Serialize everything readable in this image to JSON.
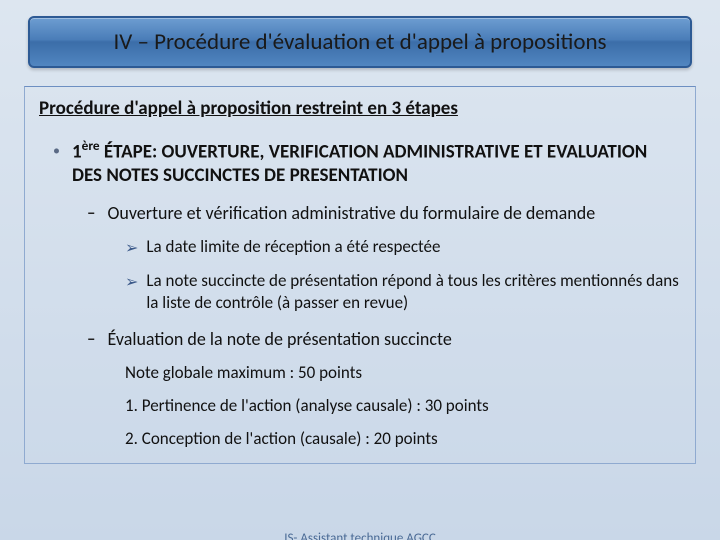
{
  "title": "IV – Procédure d'évaluation et d'appel à propositions",
  "subtitle": "Procédure d'appel à proposition restreint en 3 étapes",
  "stage": {
    "ordinal_html": "1<sup>ère</sup>",
    "label": "1ère ÉTAPE: OUVERTURE, VERIFICATION ADMINISTRATIVE ET EVALUATION DES NOTES SUCCINCTES DE PRESENTATION"
  },
  "dash1": "Ouverture et vérification administrative du formulaire de demande",
  "arrow1": "La date limite de réception a été respectée",
  "arrow2": "La note succincte de présentation répond à tous les critères mentionnés dans la liste de contrôle (à passer en revue)",
  "dash2": "Évaluation de la note de présentation succincte",
  "plain1": "Note globale maximum : 50 points",
  "plain2": "1. Pertinence de l'action (analyse causale) : 30 points",
  "plain3": "2. Conception de l'action (causale) : 20 points",
  "footer": "IS- Assistant technique AGCC",
  "colors": {
    "background_top": "#dde6f0",
    "background_bottom": "#c9d7e8",
    "title_bar_border": "#2d5a94",
    "title_bar_grad_top": "#6d9dd1",
    "title_bar_grad_bottom": "#5186c0",
    "content_border": "#8faad0",
    "arrow_color": "#3c5a8a",
    "footer_color": "#4a6a95",
    "text_color": "#111111"
  },
  "typography": {
    "title_fontsize": 23,
    "subtitle_fontsize": 19,
    "stage_fontsize": 19,
    "body_fontsize": 17,
    "footer_fontsize": 13,
    "font_family": "Calibri"
  }
}
